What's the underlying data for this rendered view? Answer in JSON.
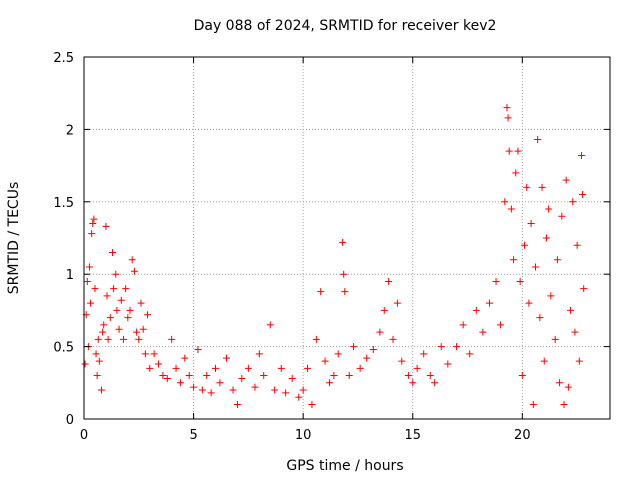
{
  "chart_data": {
    "type": "scatter",
    "title": "Day 088 of 2024, SRMTID for receiver kev2",
    "xlabel": "GPS time / hours",
    "ylabel": "SRMTID / TECUs",
    "xlim": [
      0,
      24
    ],
    "ylim": [
      0,
      2.5
    ],
    "xticks": [
      0,
      5,
      10,
      15,
      20
    ],
    "yticks": [
      0,
      0.5,
      1,
      1.5,
      2,
      2.5
    ],
    "xtick_labels": [
      "0",
      "5",
      "10",
      "15",
      "20"
    ],
    "ytick_labels": [
      "0",
      "0.5",
      "1",
      "1.5",
      "2",
      "2.5"
    ],
    "grid": true,
    "marker": "+",
    "color": "#ff0000",
    "series": [
      {
        "name": "kev2",
        "points": [
          [
            0.05,
            0.38
          ],
          [
            0.1,
            0.72
          ],
          [
            0.15,
            0.95
          ],
          [
            0.2,
            0.5
          ],
          [
            0.25,
            1.05
          ],
          [
            0.3,
            0.8
          ],
          [
            0.35,
            1.28
          ],
          [
            0.4,
            1.35
          ],
          [
            0.45,
            1.38
          ],
          [
            0.5,
            0.9
          ],
          [
            0.55,
            0.45
          ],
          [
            0.6,
            0.3
          ],
          [
            0.65,
            0.55
          ],
          [
            0.7,
            0.4
          ],
          [
            0.8,
            0.2
          ],
          [
            0.85,
            0.6
          ],
          [
            0.9,
            0.65
          ],
          [
            1.0,
            1.33
          ],
          [
            1.05,
            0.85
          ],
          [
            1.1,
            0.55
          ],
          [
            1.2,
            0.7
          ],
          [
            1.3,
            1.15
          ],
          [
            1.35,
            0.9
          ],
          [
            1.45,
            1.0
          ],
          [
            1.5,
            0.75
          ],
          [
            1.6,
            0.62
          ],
          [
            1.7,
            0.82
          ],
          [
            1.8,
            0.55
          ],
          [
            1.9,
            0.9
          ],
          [
            2.0,
            0.7
          ],
          [
            2.1,
            0.75
          ],
          [
            2.2,
            1.1
          ],
          [
            2.3,
            1.02
          ],
          [
            2.4,
            0.6
          ],
          [
            2.5,
            0.55
          ],
          [
            2.6,
            0.8
          ],
          [
            2.7,
            0.62
          ],
          [
            2.8,
            0.45
          ],
          [
            2.9,
            0.72
          ],
          [
            3.0,
            0.35
          ],
          [
            3.2,
            0.45
          ],
          [
            3.4,
            0.38
          ],
          [
            3.6,
            0.3
          ],
          [
            3.8,
            0.28
          ],
          [
            4.0,
            0.55
          ],
          [
            4.2,
            0.35
          ],
          [
            4.4,
            0.25
          ],
          [
            4.6,
            0.42
          ],
          [
            4.8,
            0.3
          ],
          [
            5.0,
            0.22
          ],
          [
            5.2,
            0.48
          ],
          [
            5.4,
            0.2
          ],
          [
            5.6,
            0.3
          ],
          [
            5.8,
            0.18
          ],
          [
            6.0,
            0.35
          ],
          [
            6.2,
            0.25
          ],
          [
            6.5,
            0.42
          ],
          [
            6.8,
            0.2
          ],
          [
            7.0,
            0.1
          ],
          [
            7.2,
            0.28
          ],
          [
            7.5,
            0.35
          ],
          [
            7.8,
            0.22
          ],
          [
            8.0,
            0.45
          ],
          [
            8.2,
            0.3
          ],
          [
            8.5,
            0.65
          ],
          [
            8.7,
            0.2
          ],
          [
            9.0,
            0.35
          ],
          [
            9.2,
            0.18
          ],
          [
            9.5,
            0.28
          ],
          [
            9.8,
            0.15
          ],
          [
            10.0,
            0.2
          ],
          [
            10.2,
            0.35
          ],
          [
            10.4,
            0.1
          ],
          [
            10.6,
            0.55
          ],
          [
            10.8,
            0.88
          ],
          [
            11.0,
            0.4
          ],
          [
            11.2,
            0.25
          ],
          [
            11.4,
            0.3
          ],
          [
            11.6,
            0.45
          ],
          [
            11.8,
            1.22
          ],
          [
            11.85,
            1.0
          ],
          [
            11.9,
            0.88
          ],
          [
            12.1,
            0.3
          ],
          [
            12.3,
            0.5
          ],
          [
            12.6,
            0.35
          ],
          [
            12.9,
            0.42
          ],
          [
            13.2,
            0.48
          ],
          [
            13.5,
            0.6
          ],
          [
            13.7,
            0.75
          ],
          [
            13.9,
            0.95
          ],
          [
            14.1,
            0.55
          ],
          [
            14.3,
            0.8
          ],
          [
            14.5,
            0.4
          ],
          [
            14.8,
            0.3
          ],
          [
            15.0,
            0.25
          ],
          [
            15.2,
            0.35
          ],
          [
            15.5,
            0.45
          ],
          [
            15.8,
            0.3
          ],
          [
            16.0,
            0.25
          ],
          [
            16.3,
            0.5
          ],
          [
            16.6,
            0.38
          ],
          [
            17.0,
            0.5
          ],
          [
            17.3,
            0.65
          ],
          [
            17.6,
            0.45
          ],
          [
            17.9,
            0.75
          ],
          [
            18.2,
            0.6
          ],
          [
            18.5,
            0.8
          ],
          [
            18.8,
            0.95
          ],
          [
            19.0,
            0.65
          ],
          [
            19.2,
            1.5
          ],
          [
            19.3,
            2.15
          ],
          [
            19.35,
            2.08
          ],
          [
            19.4,
            1.85
          ],
          [
            19.5,
            1.45
          ],
          [
            19.6,
            1.1
          ],
          [
            19.7,
            1.7
          ],
          [
            19.8,
            1.85
          ],
          [
            19.9,
            0.95
          ],
          [
            20.0,
            0.3
          ],
          [
            20.1,
            1.2
          ],
          [
            20.2,
            1.6
          ],
          [
            20.3,
            0.8
          ],
          [
            20.4,
            1.35
          ],
          [
            20.5,
            0.1
          ],
          [
            20.6,
            1.05
          ],
          [
            20.7,
            1.93
          ],
          [
            20.8,
            0.7
          ],
          [
            20.9,
            1.6
          ],
          [
            21.0,
            0.4
          ],
          [
            21.1,
            1.25
          ],
          [
            21.2,
            1.45
          ],
          [
            21.3,
            0.85
          ],
          [
            21.5,
            0.55
          ],
          [
            21.6,
            1.1
          ],
          [
            21.7,
            0.25
          ],
          [
            21.8,
            1.4
          ],
          [
            21.9,
            0.1
          ],
          [
            22.0,
            1.65
          ],
          [
            22.1,
            0.22
          ],
          [
            22.2,
            0.75
          ],
          [
            22.3,
            1.5
          ],
          [
            22.4,
            0.6
          ],
          [
            22.5,
            1.2
          ],
          [
            22.6,
            0.4
          ],
          [
            22.7,
            1.82
          ],
          [
            22.75,
            1.55
          ],
          [
            22.8,
            0.9
          ]
        ]
      }
    ]
  }
}
